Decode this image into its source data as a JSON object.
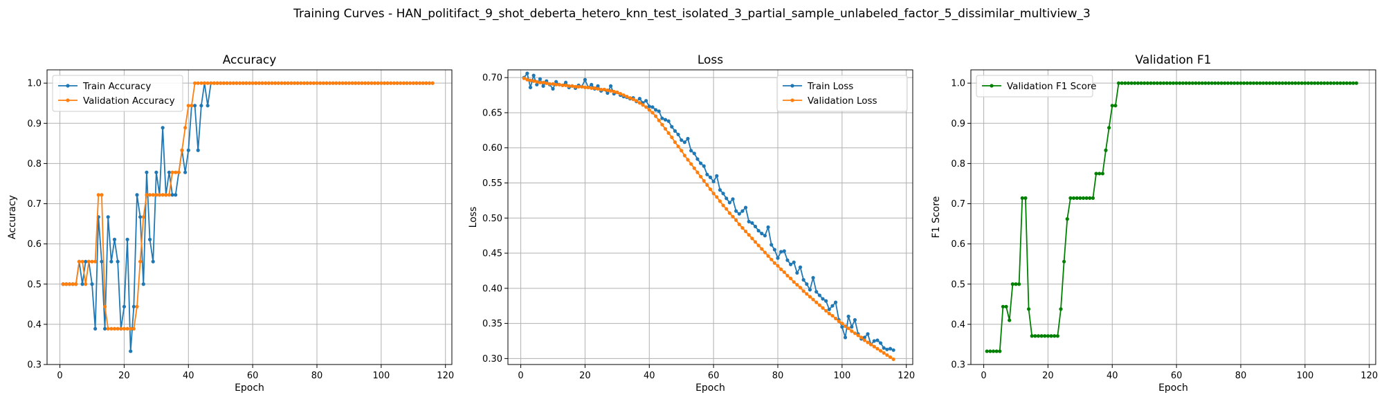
{
  "suptitle": "Training Curves - HAN_politifact_9_shot_deberta_hetero_knn_test_isolated_3_partial_sample_unlabeled_factor_5_dissimilar_multiview_3",
  "colors": {
    "blue": "#1f77b4",
    "orange": "#ff7f0e",
    "green": "#008000",
    "grid": "#b0b0b0"
  },
  "chart_data": [
    {
      "type": "line",
      "title": "Accuracy",
      "xlabel": "Epoch",
      "ylabel": "Accuracy",
      "xlim": [
        -4,
        122
      ],
      "ylim": [
        0.3,
        1.033
      ],
      "xticks": [
        0,
        20,
        40,
        60,
        80,
        100,
        120
      ],
      "yticks": [
        0.3,
        0.4,
        0.5,
        0.6,
        0.7,
        0.8,
        0.9,
        1.0
      ],
      "ytick_labels": [
        "0.3",
        "0.4",
        "0.5",
        "0.6",
        "0.7",
        "0.8",
        "0.9",
        "1.0"
      ],
      "grid": true,
      "legend": "upper-left",
      "series": [
        {
          "name": "Train Accuracy",
          "color": "#1f77b4",
          "values": [
            0.5,
            0.5,
            0.5,
            0.5,
            0.5,
            0.556,
            0.5,
            0.556,
            0.556,
            0.5,
            0.389,
            0.667,
            0.556,
            0.389,
            0.667,
            0.556,
            0.611,
            0.556,
            0.389,
            0.444,
            0.611,
            0.333,
            0.444,
            0.722,
            0.667,
            0.5,
            0.778,
            0.611,
            0.556,
            0.778,
            0.722,
            0.889,
            0.722,
            0.778,
            0.722,
            0.722,
            0.778,
            0.833,
            0.778,
            0.833,
            0.944,
            0.944,
            0.833,
            0.944,
            1.0,
            0.944,
            1.0,
            1.0,
            1.0,
            1.0,
            1.0,
            1.0,
            1.0,
            1.0,
            1.0,
            1.0,
            1.0,
            1.0,
            1.0,
            1.0,
            1.0,
            1.0,
            1.0,
            1.0,
            1.0,
            1.0,
            1.0,
            1.0,
            1.0,
            1.0,
            1.0,
            1.0,
            1.0,
            1.0,
            1.0,
            1.0,
            1.0,
            1.0,
            1.0,
            1.0,
            1.0,
            1.0,
            1.0,
            1.0,
            1.0,
            1.0,
            1.0,
            1.0,
            1.0,
            1.0,
            1.0,
            1.0,
            1.0,
            1.0,
            1.0,
            1.0,
            1.0,
            1.0,
            1.0,
            1.0,
            1.0,
            1.0,
            1.0,
            1.0,
            1.0,
            1.0,
            1.0,
            1.0,
            1.0,
            1.0,
            1.0,
            1.0,
            1.0,
            1.0,
            1.0,
            1.0
          ]
        },
        {
          "name": "Validation Accuracy",
          "color": "#ff7f0e",
          "values": [
            0.5,
            0.5,
            0.5,
            0.5,
            0.5,
            0.556,
            0.556,
            0.5,
            0.556,
            0.556,
            0.556,
            0.722,
            0.722,
            0.444,
            0.389,
            0.389,
            0.389,
            0.389,
            0.389,
            0.389,
            0.389,
            0.389,
            0.389,
            0.444,
            0.556,
            0.667,
            0.722,
            0.722,
            0.722,
            0.722,
            0.722,
            0.722,
            0.722,
            0.722,
            0.778,
            0.778,
            0.778,
            0.833,
            0.889,
            0.944,
            0.944,
            1.0,
            1.0,
            1.0,
            1.0,
            1.0,
            1.0,
            1.0,
            1.0,
            1.0,
            1.0,
            1.0,
            1.0,
            1.0,
            1.0,
            1.0,
            1.0,
            1.0,
            1.0,
            1.0,
            1.0,
            1.0,
            1.0,
            1.0,
            1.0,
            1.0,
            1.0,
            1.0,
            1.0,
            1.0,
            1.0,
            1.0,
            1.0,
            1.0,
            1.0,
            1.0,
            1.0,
            1.0,
            1.0,
            1.0,
            1.0,
            1.0,
            1.0,
            1.0,
            1.0,
            1.0,
            1.0,
            1.0,
            1.0,
            1.0,
            1.0,
            1.0,
            1.0,
            1.0,
            1.0,
            1.0,
            1.0,
            1.0,
            1.0,
            1.0,
            1.0,
            1.0,
            1.0,
            1.0,
            1.0,
            1.0,
            1.0,
            1.0,
            1.0,
            1.0,
            1.0,
            1.0,
            1.0,
            1.0,
            1.0,
            1.0
          ]
        }
      ]
    },
    {
      "type": "line",
      "title": "Loss",
      "xlabel": "Epoch",
      "ylabel": "Loss",
      "xlim": [
        -4,
        122
      ],
      "ylim": [
        0.2915,
        0.711
      ],
      "xticks": [
        0,
        20,
        40,
        60,
        80,
        100,
        120
      ],
      "yticks": [
        0.3,
        0.35,
        0.4,
        0.45,
        0.5,
        0.55,
        0.6,
        0.65,
        0.7
      ],
      "ytick_labels": [
        "0.30",
        "0.35",
        "0.40",
        "0.45",
        "0.50",
        "0.55",
        "0.60",
        "0.65",
        "0.70"
      ],
      "grid": true,
      "legend": "upper-right",
      "series": [
        {
          "name": "Train Loss",
          "color": "#1f77b4",
          "values": [
            0.7,
            0.706,
            0.686,
            0.703,
            0.69,
            0.698,
            0.688,
            0.695,
            0.69,
            0.684,
            0.694,
            0.69,
            0.689,
            0.693,
            0.686,
            0.688,
            0.685,
            0.689,
            0.687,
            0.697,
            0.686,
            0.69,
            0.684,
            0.688,
            0.681,
            0.683,
            0.678,
            0.688,
            0.677,
            0.679,
            0.675,
            0.673,
            0.672,
            0.67,
            0.671,
            0.666,
            0.67,
            0.664,
            0.667,
            0.659,
            0.658,
            0.654,
            0.652,
            0.642,
            0.64,
            0.638,
            0.63,
            0.624,
            0.619,
            0.611,
            0.608,
            0.613,
            0.596,
            0.592,
            0.584,
            0.578,
            0.574,
            0.562,
            0.558,
            0.552,
            0.56,
            0.54,
            0.535,
            0.528,
            0.522,
            0.527,
            0.51,
            0.506,
            0.51,
            0.515,
            0.495,
            0.493,
            0.488,
            0.482,
            0.478,
            0.475,
            0.487,
            0.462,
            0.455,
            0.443,
            0.452,
            0.453,
            0.44,
            0.434,
            0.437,
            0.422,
            0.43,
            0.412,
            0.406,
            0.398,
            0.415,
            0.395,
            0.39,
            0.385,
            0.382,
            0.37,
            0.375,
            0.38,
            0.355,
            0.345,
            0.33,
            0.36,
            0.345,
            0.355,
            0.335,
            0.328,
            0.33,
            0.335,
            0.32,
            0.325,
            0.326,
            0.322,
            0.315,
            0.313,
            0.314,
            0.312
          ]
        },
        {
          "name": "Validation Loss",
          "color": "#ff7f0e",
          "values": [
            0.699,
            0.697,
            0.696,
            0.695,
            0.694,
            0.693,
            0.693,
            0.692,
            0.691,
            0.691,
            0.69,
            0.69,
            0.689,
            0.689,
            0.688,
            0.688,
            0.687,
            0.687,
            0.687,
            0.686,
            0.686,
            0.685,
            0.685,
            0.684,
            0.683,
            0.683,
            0.682,
            0.681,
            0.68,
            0.679,
            0.677,
            0.675,
            0.673,
            0.671,
            0.669,
            0.667,
            0.664,
            0.661,
            0.658,
            0.654,
            0.65,
            0.645,
            0.639,
            0.633,
            0.627,
            0.621,
            0.615,
            0.608,
            0.602,
            0.596,
            0.589,
            0.583,
            0.577,
            0.571,
            0.565,
            0.559,
            0.553,
            0.547,
            0.541,
            0.535,
            0.53,
            0.524,
            0.518,
            0.513,
            0.507,
            0.502,
            0.497,
            0.491,
            0.486,
            0.481,
            0.476,
            0.471,
            0.466,
            0.461,
            0.456,
            0.451,
            0.446,
            0.441,
            0.436,
            0.432,
            0.427,
            0.423,
            0.418,
            0.414,
            0.409,
            0.405,
            0.401,
            0.396,
            0.392,
            0.388,
            0.384,
            0.38,
            0.376,
            0.372,
            0.368,
            0.364,
            0.361,
            0.357,
            0.353,
            0.35,
            0.346,
            0.343,
            0.339,
            0.336,
            0.333,
            0.33,
            0.326,
            0.323,
            0.32,
            0.317,
            0.314,
            0.311,
            0.308,
            0.305,
            0.302,
            0.299
          ]
        }
      ]
    },
    {
      "type": "line",
      "title": "Validation F1",
      "xlabel": "Epoch",
      "ylabel": "F1 Score",
      "xlim": [
        -4,
        122
      ],
      "ylim": [
        0.3,
        1.033
      ],
      "xticks": [
        0,
        20,
        40,
        60,
        80,
        100,
        120
      ],
      "yticks": [
        0.3,
        0.4,
        0.5,
        0.6,
        0.7,
        0.8,
        0.9,
        1.0
      ],
      "ytick_labels": [
        "0.3",
        "0.4",
        "0.5",
        "0.6",
        "0.7",
        "0.8",
        "0.9",
        "1.0"
      ],
      "grid": true,
      "legend": "upper-left",
      "series": [
        {
          "name": "Validation F1 Score",
          "color": "#008000",
          "values": [
            0.333,
            0.333,
            0.333,
            0.333,
            0.333,
            0.444,
            0.444,
            0.41,
            0.5,
            0.5,
            0.5,
            0.714,
            0.714,
            0.438,
            0.371,
            0.371,
            0.371,
            0.371,
            0.371,
            0.371,
            0.371,
            0.371,
            0.371,
            0.438,
            0.556,
            0.662,
            0.714,
            0.714,
            0.714,
            0.714,
            0.714,
            0.714,
            0.714,
            0.714,
            0.775,
            0.775,
            0.775,
            0.833,
            0.889,
            0.944,
            0.944,
            1.0,
            1.0,
            1.0,
            1.0,
            1.0,
            1.0,
            1.0,
            1.0,
            1.0,
            1.0,
            1.0,
            1.0,
            1.0,
            1.0,
            1.0,
            1.0,
            1.0,
            1.0,
            1.0,
            1.0,
            1.0,
            1.0,
            1.0,
            1.0,
            1.0,
            1.0,
            1.0,
            1.0,
            1.0,
            1.0,
            1.0,
            1.0,
            1.0,
            1.0,
            1.0,
            1.0,
            1.0,
            1.0,
            1.0,
            1.0,
            1.0,
            1.0,
            1.0,
            1.0,
            1.0,
            1.0,
            1.0,
            1.0,
            1.0,
            1.0,
            1.0,
            1.0,
            1.0,
            1.0,
            1.0,
            1.0,
            1.0,
            1.0,
            1.0,
            1.0,
            1.0,
            1.0,
            1.0,
            1.0,
            1.0,
            1.0,
            1.0,
            1.0,
            1.0,
            1.0,
            1.0,
            1.0,
            1.0,
            1.0,
            1.0
          ]
        }
      ]
    }
  ]
}
